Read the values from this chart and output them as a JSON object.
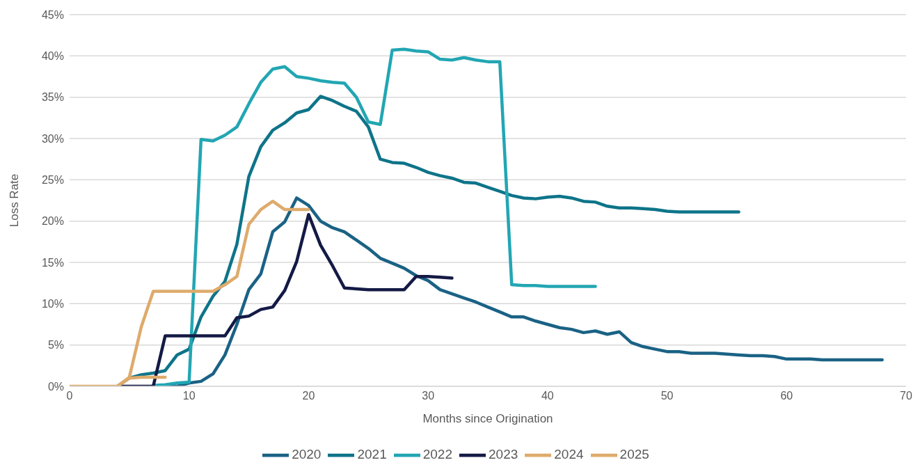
{
  "chart_data": {
    "type": "line",
    "xlabel": "Months since Origination",
    "ylabel": "Loss Rate",
    "x": [
      0,
      1,
      2,
      3,
      4,
      5,
      6,
      7,
      8,
      9,
      10,
      11,
      12,
      13,
      14,
      15,
      16,
      17,
      18,
      19,
      20,
      21,
      22,
      23,
      24,
      25,
      26,
      27,
      28,
      29,
      30,
      31,
      32,
      33,
      34,
      35,
      36,
      37,
      38,
      39,
      40,
      41,
      42,
      43,
      44,
      45,
      46,
      47,
      48,
      49,
      50,
      51,
      52,
      53,
      54,
      55,
      56,
      57,
      58,
      59,
      60,
      61,
      62,
      63,
      64,
      65,
      66,
      67,
      68
    ],
    "xlim": [
      0,
      70
    ],
    "xticks": [
      0,
      10,
      20,
      30,
      40,
      50,
      60,
      70
    ],
    "ylim": [
      0,
      45
    ],
    "yticks": [
      {
        "value": 0,
        "label": "0%"
      },
      {
        "value": 5,
        "label": "5%"
      },
      {
        "value": 10,
        "label": "10%"
      },
      {
        "value": 15,
        "label": "15%"
      },
      {
        "value": 20,
        "label": "20%"
      },
      {
        "value": 25,
        "label": "25%"
      },
      {
        "value": 30,
        "label": "30%"
      },
      {
        "value": 35,
        "label": "35%"
      },
      {
        "value": 40,
        "label": "40%"
      },
      {
        "value": 45,
        "label": "45%"
      }
    ],
    "grid": "y",
    "legend": "bottom",
    "marker": "none",
    "line_style": "solid",
    "series": [
      {
        "name": "2020",
        "color": "#1a6285",
        "values": [
          null,
          null,
          null,
          null,
          null,
          null,
          null,
          0,
          0,
          0,
          0.4,
          0.6,
          1.5,
          3.8,
          7.5,
          11.7,
          13.6,
          18.7,
          19.9,
          22.8,
          21.9,
          20.0,
          19.2,
          18.7,
          17.7,
          16.7,
          15.5,
          14.9,
          14.3,
          13.4,
          12.8,
          11.7,
          11.2,
          10.7,
          10.2,
          9.6,
          9.0,
          8.4,
          8.4,
          7.9,
          7.5,
          7.1,
          6.9,
          6.5,
          6.7,
          6.3,
          6.6,
          5.3,
          4.8,
          4.5,
          4.2,
          4.2,
          4.0,
          4.0,
          4.0,
          3.9,
          3.8,
          3.7,
          3.7,
          3.6,
          3.3,
          3.3,
          3.3,
          3.2,
          3.2,
          3.2,
          3.2,
          3.2,
          3.2
        ]
      },
      {
        "name": "2021",
        "color": "#0e7489",
        "values": [
          null,
          null,
          null,
          null,
          0,
          1.0,
          1.4,
          1.6,
          1.9,
          3.8,
          4.5,
          8.4,
          10.9,
          12.7,
          17.2,
          25.4,
          29.0,
          31.0,
          31.9,
          33.1,
          33.5,
          35.1,
          34.6,
          33.9,
          33.3,
          31.4,
          27.5,
          27.1,
          27.0,
          26.5,
          25.9,
          25.5,
          25.2,
          24.7,
          24.6,
          24.1,
          23.6,
          23.1,
          22.8,
          22.7,
          22.9,
          23.0,
          22.8,
          22.4,
          22.3,
          21.8,
          21.6,
          21.6,
          21.5,
          21.4,
          21.2,
          21.1,
          21.1,
          21.1,
          21.1,
          21.1,
          21.1,
          null,
          null,
          null,
          null,
          null,
          null,
          null,
          null,
          null,
          null,
          null,
          null
        ]
      },
      {
        "name": "2022",
        "color": "#22a6b3",
        "values": [
          null,
          null,
          null,
          null,
          null,
          null,
          null,
          0.1,
          0.2,
          0.4,
          0.5,
          29.9,
          29.7,
          30.4,
          31.4,
          34.2,
          36.8,
          38.4,
          38.7,
          37.5,
          37.3,
          37.0,
          36.8,
          36.7,
          35.0,
          32.0,
          31.7,
          40.7,
          40.8,
          40.6,
          40.5,
          39.6,
          39.5,
          39.8,
          39.5,
          39.3,
          39.3,
          12.3,
          12.2,
          12.2,
          12.1,
          12.1,
          12.1,
          12.1,
          12.1,
          null,
          null,
          null,
          null,
          null,
          null,
          null,
          null,
          null,
          null,
          null,
          null,
          null,
          null,
          null,
          null,
          null,
          null,
          null,
          null,
          null,
          null,
          null,
          null
        ]
      },
      {
        "name": "2023",
        "color": "#141a45",
        "values": [
          null,
          null,
          null,
          null,
          0,
          0,
          0,
          0,
          6.1,
          6.1,
          6.1,
          6.1,
          6.1,
          6.1,
          8.3,
          8.5,
          9.3,
          9.6,
          11.6,
          15.1,
          20.8,
          17.1,
          14.6,
          11.9,
          11.8,
          11.7,
          11.7,
          11.7,
          11.7,
          13.3,
          13.3,
          13.2,
          13.1,
          null,
          null,
          null,
          null,
          null,
          null,
          null,
          null,
          null,
          null,
          null,
          null,
          null,
          null,
          null,
          null,
          null,
          null,
          null,
          null,
          null,
          null,
          null,
          null,
          null,
          null,
          null,
          null,
          null,
          null,
          null,
          null,
          null,
          null,
          null,
          null
        ]
      },
      {
        "name": "2024",
        "color": "#deab6c",
        "values": [
          null,
          null,
          null,
          null,
          0,
          1.1,
          7.2,
          11.5,
          11.5,
          11.5,
          11.5,
          11.5,
          11.5,
          12.3,
          13.3,
          19.6,
          21.4,
          22.4,
          21.4,
          21.4,
          21.4,
          null,
          null,
          null,
          null,
          null,
          null,
          null,
          null,
          null,
          null,
          null,
          null,
          null,
          null,
          null,
          null,
          null,
          null,
          null,
          null,
          null,
          null,
          null,
          null,
          null,
          null,
          null,
          null,
          null,
          null,
          null,
          null,
          null,
          null,
          null,
          null,
          null,
          null,
          null,
          null,
          null,
          null,
          null,
          null,
          null,
          null,
          null,
          null
        ]
      },
      {
        "name": "2025",
        "color": "#deab6c",
        "values": [
          0,
          0,
          0,
          0,
          0,
          1.0,
          1.1,
          1.1,
          1.1,
          null,
          null,
          null,
          null,
          null,
          null,
          null,
          null,
          null,
          null,
          null,
          null,
          null,
          null,
          null,
          null,
          null,
          null,
          null,
          null,
          null,
          null,
          null,
          null,
          null,
          null,
          null,
          null,
          null,
          null,
          null,
          null,
          null,
          null,
          null,
          null,
          null,
          null,
          null,
          null,
          null,
          null,
          null,
          null,
          null,
          null,
          null,
          null,
          null,
          null,
          null,
          null,
          null,
          null,
          null,
          null,
          null,
          null,
          null,
          null
        ]
      }
    ]
  }
}
